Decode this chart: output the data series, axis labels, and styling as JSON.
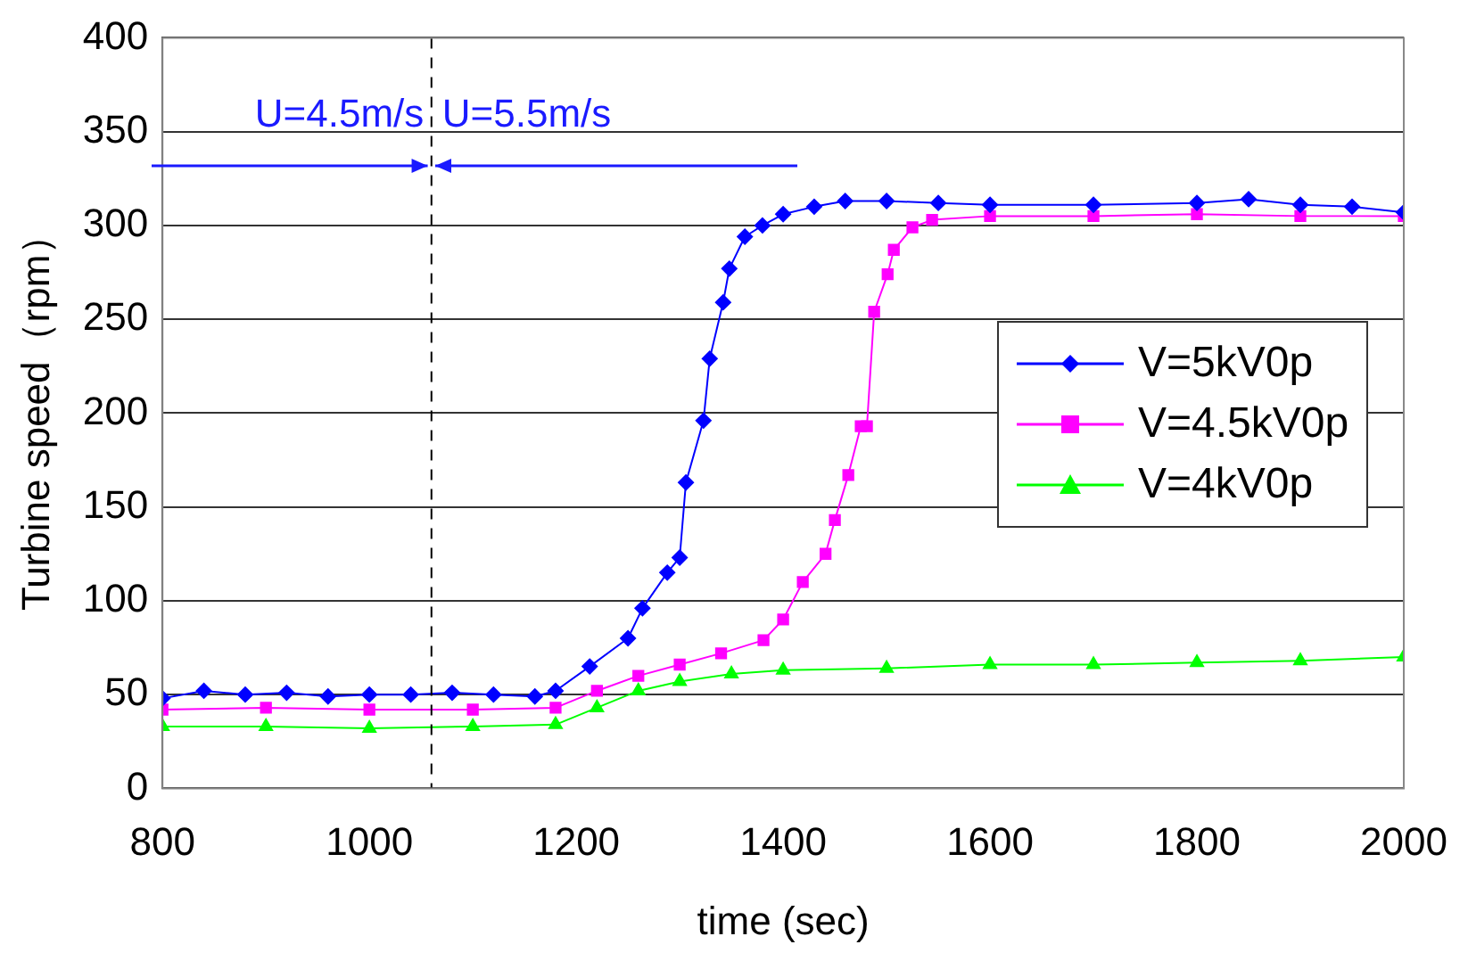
{
  "chart_data": {
    "type": "line",
    "xlabel": "time (sec)",
    "ylabel": "Turbine speed（rpm）",
    "xlim": [
      800,
      2000
    ],
    "xticks": [
      800,
      1000,
      1200,
      1400,
      1600,
      1800,
      2000
    ],
    "ylim": [
      0,
      400
    ],
    "yticks": [
      0,
      50,
      100,
      150,
      200,
      250,
      300,
      350,
      400
    ],
    "grid": "y",
    "legend": "right",
    "ref_lines": [
      {
        "axis": "x",
        "value": 1060,
        "line_style": "dashed",
        "color": "#000000"
      }
    ],
    "annotations": [
      "U=4.5m/s",
      "U=5.5m/s"
    ],
    "series": [
      {
        "name": "V=5kV0p",
        "color": "#0000ff",
        "marker": "diamond",
        "x": [
          800,
          840,
          880,
          920,
          960,
          1000,
          1040,
          1080,
          1120,
          1160,
          1180,
          1213,
          1250,
          1264,
          1288,
          1300,
          1306,
          1323,
          1329,
          1342,
          1348,
          1363,
          1380,
          1400,
          1430,
          1460,
          1500,
          1550,
          1600,
          1700,
          1800,
          1850,
          1900,
          1950,
          2000
        ],
        "values": [
          48,
          52,
          50,
          51,
          49,
          50,
          50,
          51,
          50,
          49,
          52,
          65,
          80,
          96,
          115,
          123,
          163,
          196,
          229,
          259,
          277,
          294,
          300,
          306,
          310,
          313,
          313,
          312,
          311,
          311,
          312,
          314,
          311,
          310,
          307
        ]
      },
      {
        "name": "V=4.5kV0p",
        "color": "#ff00ff",
        "marker": "square",
        "x": [
          800,
          900,
          1000,
          1100,
          1180,
          1220,
          1260,
          1300,
          1340,
          1381,
          1400,
          1419,
          1441,
          1450,
          1463,
          1475,
          1481,
          1488,
          1501,
          1507,
          1525,
          1544,
          1600,
          1700,
          1800,
          1900,
          2000
        ],
        "values": [
          42,
          43,
          42,
          42,
          43,
          52,
          60,
          66,
          72,
          79,
          90,
          110,
          125,
          143,
          167,
          193,
          193,
          254,
          274,
          287,
          299,
          303,
          305,
          305,
          306,
          305,
          305
        ]
      },
      {
        "name": "V=4kV0p",
        "color": "#00ff00",
        "marker": "triangle",
        "x": [
          800,
          900,
          1000,
          1100,
          1180,
          1220,
          1260,
          1300,
          1350,
          1400,
          1500,
          1600,
          1700,
          1800,
          1900,
          2000
        ],
        "values": [
          33,
          33,
          32,
          33,
          34,
          43,
          52,
          57,
          61,
          63,
          64,
          66,
          66,
          67,
          68,
          70
        ]
      }
    ]
  }
}
